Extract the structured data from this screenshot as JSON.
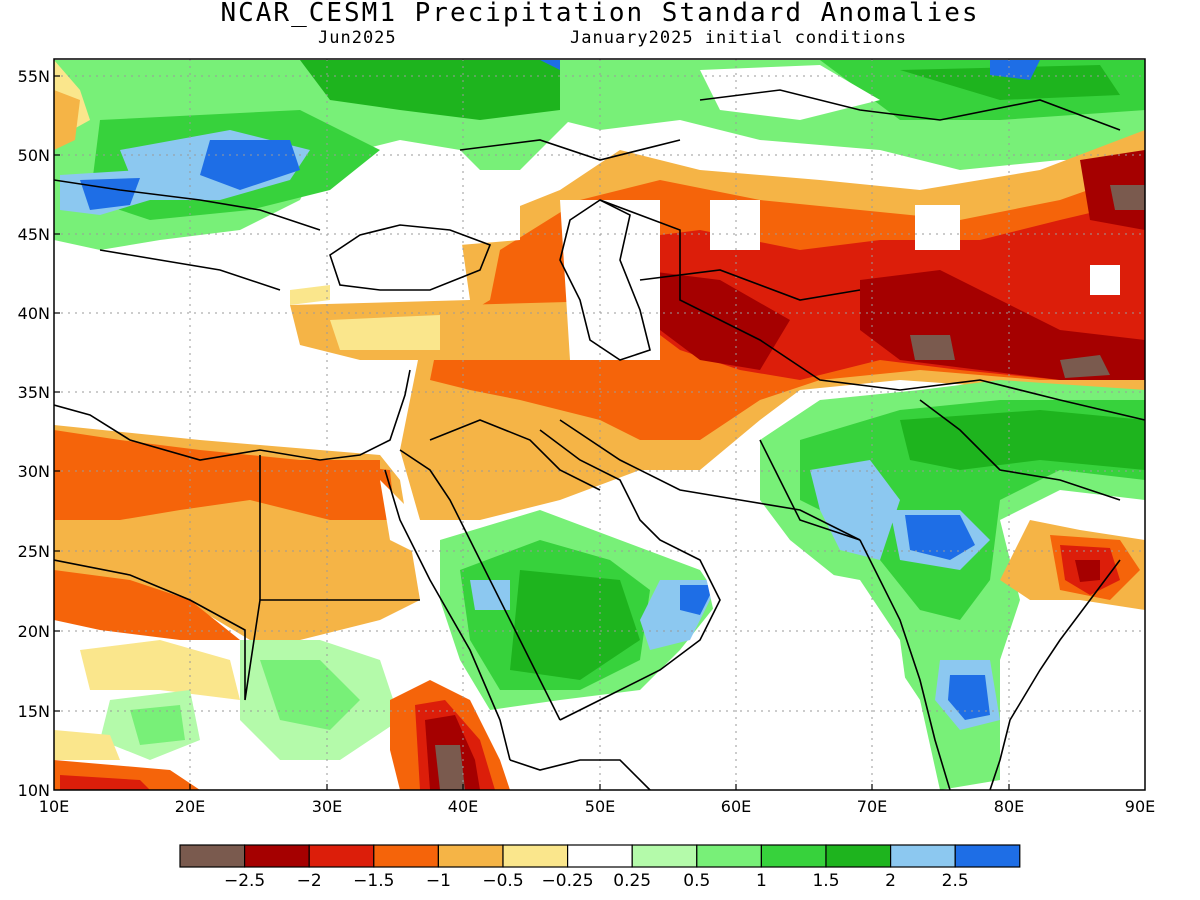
{
  "header": {
    "title": "NCAR_CESM1 Precipitation Standard Anomalies",
    "month": "Jun2025",
    "init": "January2025 initial conditions"
  },
  "axes": {
    "lat_labels": [
      "55N",
      "50N",
      "45N",
      "40N",
      "35N",
      "30N",
      "25N",
      "20N",
      "15N",
      "10N"
    ],
    "lon_labels": [
      "10E",
      "20E",
      "30E",
      "40E",
      "50E",
      "60E",
      "70E",
      "80E",
      "90E"
    ]
  },
  "colorbar": {
    "colors": [
      "#7a5a4e",
      "#a50000",
      "#dc1e0a",
      "#f5640a",
      "#f5b446",
      "#fae68c",
      "#ffffff",
      "#b4faaa",
      "#78f078",
      "#37d23c",
      "#1eb41e",
      "#8cc8f0",
      "#1e6ee6"
    ],
    "labels": [
      "−2.5",
      "−2",
      "−1.5",
      "−1",
      "−0.5",
      "−0.25",
      "0.25",
      "0.5",
      "1",
      "1.5",
      "2",
      "2.5"
    ]
  }
}
